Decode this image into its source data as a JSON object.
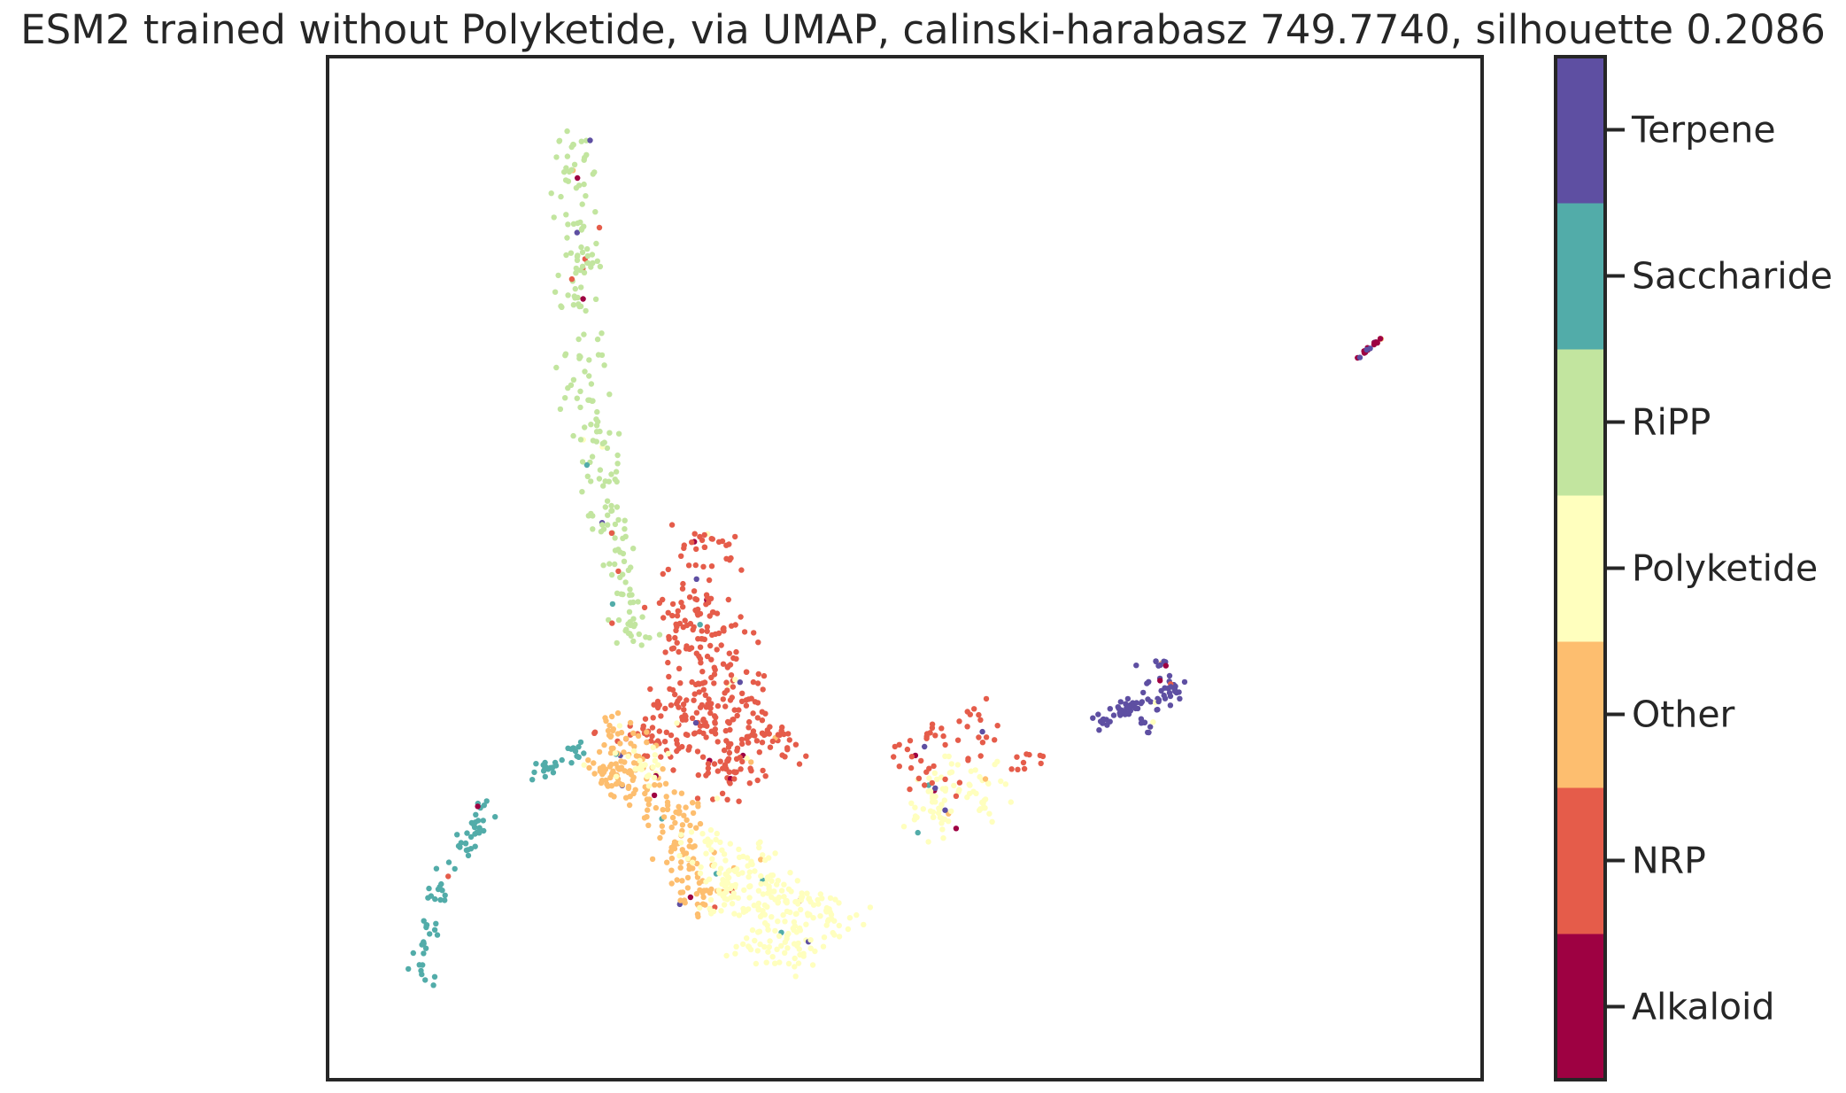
{
  "chart_data": {
    "type": "scatter",
    "title": "ESM2 trained without Polyketide, via UMAP, calinski-harabasz 749.7740, silhouette 0.2086",
    "xlabel": "",
    "ylabel": "",
    "axes_ticks": "none",
    "grid": false,
    "legend": "colorbar-right",
    "categories": [
      "Alkaloid",
      "NRP",
      "Other",
      "Polyketide",
      "RiPP",
      "Saccharide",
      "Terpene"
    ],
    "colors": {
      "Alkaloid": "#9e0142",
      "NRP": "#e55c4a",
      "Other": "#fdbe6f",
      "Polyketide": "#ffffbe",
      "RiPP": "#c2e59f",
      "Saccharide": "#52aca9",
      "Terpene": "#5e4fa2"
    },
    "xlim": [
      0,
      100
    ],
    "ylim": [
      0,
      100
    ],
    "clusters": [
      {
        "category": "RiPP",
        "n": 230,
        "pts": [
          [
            21.3,
            91.5
          ],
          [
            21.2,
            88
          ],
          [
            21.6,
            84
          ],
          [
            21.9,
            80
          ],
          [
            21.5,
            76
          ],
          [
            22,
            71
          ],
          [
            22,
            67
          ],
          [
            23.2,
            63
          ],
          [
            23.8,
            59
          ],
          [
            24.5,
            55
          ],
          [
            25.1,
            51
          ],
          [
            25.8,
            47
          ],
          [
            26.3,
            44
          ]
        ],
        "spread": 1.35
      },
      {
        "category": "NRP",
        "n": 380,
        "pts": [
          [
            33.1,
            52
          ],
          [
            31.5,
            48
          ],
          [
            30.9,
            44
          ],
          [
            33.2,
            45
          ],
          [
            34.8,
            42
          ],
          [
            32,
            40
          ],
          [
            35.5,
            37.5
          ],
          [
            29.8,
            36
          ],
          [
            33.4,
            35.5
          ],
          [
            36.7,
            35
          ],
          [
            31,
            33.2
          ],
          [
            35.2,
            31.5
          ],
          [
            27.4,
            34
          ],
          [
            38.7,
            33
          ],
          [
            34,
            29.5
          ]
        ],
        "spread": 1.9
      },
      {
        "category": "Other",
        "n": 210,
        "pts": [
          [
            25,
            34
          ],
          [
            24.2,
            31
          ],
          [
            24.8,
            29
          ],
          [
            26.5,
            31.5
          ],
          [
            27.6,
            28.5
          ],
          [
            29.5,
            27
          ],
          [
            31.5,
            26
          ],
          [
            30.5,
            23
          ],
          [
            31.2,
            20
          ],
          [
            32.5,
            17
          ]
        ],
        "spread": 1.5
      },
      {
        "category": "Polyketide",
        "n": 380,
        "pts": [
          [
            33,
            22.5
          ],
          [
            35,
            20
          ],
          [
            37,
            21
          ],
          [
            38.5,
            18.5
          ],
          [
            36.8,
            16.5
          ],
          [
            40.2,
            17
          ],
          [
            34.2,
            17.5
          ],
          [
            42.5,
            17
          ],
          [
            44,
            15.5
          ],
          [
            39.5,
            14
          ],
          [
            41,
            12.5
          ],
          [
            37.2,
            13.2
          ],
          [
            27.5,
            30.5
          ],
          [
            53,
            28
          ],
          [
            55.5,
            30
          ],
          [
            52.5,
            25.5
          ],
          [
            57,
            27.5
          ]
        ],
        "spread": 1.6
      },
      {
        "category": "NRP",
        "n": 60,
        "pts": [
          [
            50,
            32
          ],
          [
            53,
            34
          ],
          [
            52.5,
            29.5
          ],
          [
            55.5,
            32.5
          ],
          [
            58,
            33.5
          ],
          [
            61,
            31.5
          ],
          [
            56,
            36
          ]
        ],
        "spread": 1.4
      },
      {
        "category": "Saccharide",
        "n": 95,
        "pts": [
          [
            13.5,
            26.5
          ],
          [
            13,
            24.5
          ],
          [
            12,
            23
          ],
          [
            10.5,
            20.5
          ],
          [
            9.6,
            18
          ],
          [
            9,
            15
          ],
          [
            8.4,
            12.5
          ],
          [
            8.1,
            10.5
          ],
          [
            20,
            31
          ],
          [
            19,
            30.5
          ],
          [
            21.5,
            32
          ],
          [
            17.8,
            30
          ]
        ],
        "spread": 0.7
      },
      {
        "category": "Terpene",
        "n": 85,
        "pts": [
          [
            71.5,
            39.5
          ],
          [
            72.3,
            37
          ],
          [
            70.5,
            37.5
          ],
          [
            73.2,
            38
          ],
          [
            69,
            36
          ],
          [
            67.3,
            35.5
          ],
          [
            71,
            35
          ],
          [
            72.2,
            40.5
          ]
        ],
        "spread": 0.85
      }
    ],
    "outlier_cluster": {
      "x0": 89.2,
      "y0": 70.5,
      "x1": 91.2,
      "y1": 72.5,
      "n": 20
    }
  }
}
